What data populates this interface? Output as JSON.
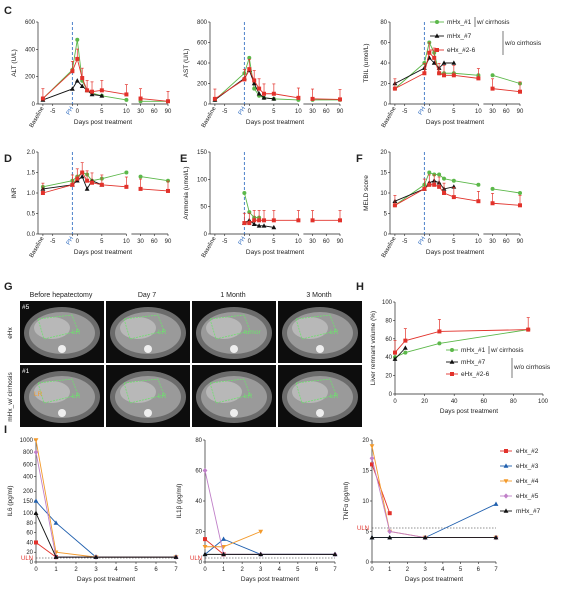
{
  "panel_letters": [
    "C",
    "D",
    "E",
    "F",
    "G",
    "H",
    "I"
  ],
  "colors": {
    "green": "#5cb84a",
    "black": "#111111",
    "red": "#e2322b",
    "orange": "#f39a2c",
    "blue": "#1f5fae",
    "purple": "#c080c8",
    "dash_blue": "#3a74c4"
  },
  "legend_top": {
    "items": [
      "mHx_#1",
      "mHx_#7",
      "eHx_#2-6"
    ],
    "groups": [
      "w/ cirrhosis",
      "w/o cirrhosis"
    ]
  },
  "legend_h": {
    "items": [
      "mHx_#1",
      "mHx_#7",
      "eHx_#2-6"
    ],
    "groups": [
      "w/ cirrhosis",
      "w/o cirrhosis"
    ]
  },
  "legend_i": [
    "eHx_#2",
    "eHx_#3",
    "eHx_#4",
    "eHx_#5",
    "mHx_#7"
  ],
  "ct": {
    "columns": [
      "Before hepatectomy",
      "Day 7",
      "1 Month",
      "3 Month"
    ],
    "rows": [
      "eHx",
      "mHx_w/ cirrhosis"
    ],
    "case_labels": [
      "#5",
      "#1"
    ],
    "annotations": [
      "LR",
      "LR",
      "tumor",
      "LR",
      "LR",
      "LR",
      "LR",
      "LR",
      "LR",
      "tumor",
      "LR",
      "LR",
      "LR"
    ]
  },
  "chart_data": [
    {
      "panel": "C",
      "type": "line",
      "ylabel": "ALT (U/L)",
      "xlabel": "Days post treatment",
      "ylim": [
        0,
        600
      ],
      "yticks": [
        "0",
        "200",
        "400",
        "600"
      ],
      "xticks": [
        "Baseline",
        "-5",
        "PH",
        "0",
        "5",
        "10",
        "30",
        "60",
        "90"
      ],
      "series": [
        {
          "name": "mHx_#1",
          "x": [
            -7,
            -1,
            0,
            1,
            2,
            3,
            5,
            10,
            30,
            90
          ],
          "y": [
            40,
            250,
            470,
            170,
            100,
            80,
            60,
            30,
            20,
            20
          ]
        },
        {
          "name": "mHx_#7",
          "x": [
            -7,
            -1,
            0,
            1,
            2,
            3,
            5
          ],
          "y": [
            30,
            110,
            170,
            130,
            100,
            70,
            60
          ]
        },
        {
          "name": "eHx_#2-6",
          "x": [
            -7,
            -1,
            0,
            1,
            2,
            3,
            5,
            10,
            30,
            90
          ],
          "y": [
            40,
            240,
            330,
            190,
            100,
            90,
            100,
            70,
            40,
            20
          ]
        }
      ]
    },
    {
      "panel": "C",
      "type": "line",
      "ylabel": "AST (U/L)",
      "xlabel": "Days post treatment",
      "ylim": [
        0,
        800
      ],
      "yticks": [
        "0",
        "200",
        "400",
        "600",
        "800"
      ],
      "xticks": [
        "Baseline",
        "-5",
        "PH",
        "0",
        "5",
        "10",
        "30",
        "60",
        "90"
      ],
      "series": [
        {
          "name": "mHx_#1",
          "x": [
            -7,
            -1,
            0,
            1,
            2,
            3,
            5,
            10,
            30,
            90
          ],
          "y": [
            40,
            300,
            450,
            150,
            80,
            60,
            50,
            40,
            40,
            40
          ]
        },
        {
          "name": "mHx_#7",
          "x": [
            -7,
            -1,
            0,
            1,
            2,
            3,
            5
          ],
          "y": [
            40,
            250,
            330,
            200,
            100,
            60,
            50
          ]
        },
        {
          "name": "eHx_#2-6",
          "x": [
            -7,
            -1,
            0,
            1,
            2,
            3,
            5,
            10,
            30,
            90
          ],
          "y": [
            50,
            240,
            340,
            230,
            150,
            100,
            100,
            60,
            50,
            45
          ]
        }
      ]
    },
    {
      "panel": "C",
      "type": "line",
      "ylabel": "TBIL (umol/L)",
      "xlabel": "Days post treatment",
      "ylim": [
        0,
        80
      ],
      "yticks": [
        "0",
        "20",
        "40",
        "60",
        "80"
      ],
      "xticks": [
        "Baseline",
        "-5",
        "PH",
        "0",
        "5",
        "10",
        "30",
        "60",
        "90"
      ],
      "series": [
        {
          "name": "mHx_#1",
          "x": [
            -7,
            -1,
            0,
            1,
            2,
            3,
            5,
            10,
            30,
            90
          ],
          "y": [
            15,
            40,
            60,
            50,
            30,
            30,
            30,
            28,
            28,
            20
          ]
        },
        {
          "name": "mHx_#7",
          "x": [
            -7,
            -1,
            0,
            1,
            2,
            3,
            5
          ],
          "y": [
            20,
            35,
            45,
            40,
            35,
            40,
            40
          ]
        },
        {
          "name": "eHx_#2-6",
          "x": [
            -7,
            -1,
            0,
            1,
            2,
            3,
            5,
            10,
            30,
            90
          ],
          "y": [
            15,
            30,
            50,
            45,
            30,
            28,
            28,
            25,
            15,
            12
          ]
        }
      ]
    },
    {
      "panel": "D",
      "type": "line",
      "ylabel": "INR",
      "xlabel": "Days post treatment",
      "ylim": [
        0.0,
        2.0
      ],
      "yticks": [
        "0.0",
        "0.5",
        "1.0",
        "1.5",
        "2.0"
      ],
      "xticks": [
        "Baseline",
        "-5",
        "PH",
        "0",
        "5",
        "10",
        "30",
        "60",
        "90"
      ],
      "series": [
        {
          "name": "mHx_#1",
          "x": [
            -7,
            -1,
            0,
            1,
            2,
            3,
            5,
            10,
            30,
            90
          ],
          "y": [
            1.15,
            1.3,
            1.4,
            1.5,
            1.45,
            1.3,
            1.35,
            1.5,
            1.4,
            1.3
          ]
        },
        {
          "name": "mHx_#7",
          "x": [
            -7,
            -1,
            0,
            1,
            2,
            3,
            5
          ],
          "y": [
            1.1,
            1.2,
            1.3,
            1.4,
            1.1,
            1.3,
            1.2
          ]
        },
        {
          "name": "eHx_#2-6",
          "x": [
            -7,
            -1,
            0,
            1,
            2,
            3,
            5,
            10,
            30,
            90
          ],
          "y": [
            1.0,
            1.2,
            1.35,
            1.5,
            1.3,
            1.25,
            1.2,
            1.15,
            1.1,
            1.05
          ]
        }
      ]
    },
    {
      "panel": "E",
      "type": "line",
      "ylabel": "Ammonia (umol/L)",
      "xlabel": "Days post treatment",
      "ylim": [
        0,
        150
      ],
      "yticks": [
        "0",
        "50",
        "100",
        "150"
      ],
      "xticks": [
        "Baseline",
        "-5",
        "PH",
        "0",
        "5",
        "10",
        "30",
        "60",
        "90"
      ],
      "series": [
        {
          "name": "mHx_#1",
          "x": [
            -1,
            0,
            1,
            2
          ],
          "y": [
            75,
            40,
            30,
            30
          ]
        },
        {
          "name": "mHx_#7",
          "x": [
            -1,
            0,
            1,
            2,
            3,
            5
          ],
          "y": [
            20,
            25,
            18,
            15,
            15,
            12
          ]
        },
        {
          "name": "eHx_#2-6",
          "x": [
            -1,
            0,
            1,
            2,
            3,
            5,
            10,
            30,
            90
          ],
          "y": [
            20,
            20,
            25,
            25,
            25,
            25,
            25,
            25,
            25
          ]
        }
      ]
    },
    {
      "panel": "F",
      "type": "line",
      "ylabel": "MELD score",
      "xlabel": "Days post treatment",
      "ylim": [
        0,
        20
      ],
      "yticks": [
        "0",
        "5",
        "10",
        "15",
        "20"
      ],
      "xticks": [
        "Baseline",
        "-5",
        "PH",
        "0",
        "5",
        "10",
        "30",
        "60",
        "90"
      ],
      "series": [
        {
          "name": "mHx_#1",
          "x": [
            -7,
            -1,
            0,
            1,
            2,
            3,
            5,
            10,
            30,
            90
          ],
          "y": [
            7,
            12,
            15,
            14.5,
            14.5,
            13.5,
            13,
            12,
            11,
            10
          ]
        },
        {
          "name": "mHx_#7",
          "x": [
            -7,
            -1,
            0,
            1,
            2,
            3,
            5
          ],
          "y": [
            8,
            11,
            12.5,
            13,
            12.5,
            11,
            11.5
          ]
        },
        {
          "name": "eHx_#2-6",
          "x": [
            -7,
            -1,
            0,
            1,
            2,
            3,
            5,
            10,
            30,
            90
          ],
          "y": [
            7,
            11,
            12,
            12,
            11.5,
            10,
            9,
            8,
            7.5,
            7
          ]
        }
      ]
    },
    {
      "panel": "H",
      "type": "line",
      "ylabel": "Liver remnant volume (%)",
      "xlabel": "Days post treatment",
      "ylim": [
        0,
        100
      ],
      "yticks": [
        "0",
        "20",
        "40",
        "60",
        "80",
        "100"
      ],
      "xticks": [
        "0",
        "20",
        "40",
        "60",
        "80",
        "100"
      ],
      "series": [
        {
          "name": "mHx_#1",
          "x": [
            0,
            7,
            30,
            90
          ],
          "y": [
            40,
            45,
            55,
            70
          ]
        },
        {
          "name": "mHx_#7",
          "x": [
            0,
            7
          ],
          "y": [
            38,
            50
          ]
        },
        {
          "name": "eHx_#2-6",
          "x": [
            0,
            7,
            30,
            90
          ],
          "y": [
            45,
            58,
            68,
            70
          ]
        }
      ]
    },
    {
      "panel": "I",
      "type": "line",
      "ylabel": "IL6 (pg/ml)",
      "xlabel": "Days post treatment",
      "yticks": [
        "0",
        "20",
        "40",
        "60",
        "80",
        "100",
        "150",
        "200",
        "400",
        "600",
        "800",
        "1000"
      ],
      "xticks": [
        "0",
        "1",
        "2",
        "3",
        "4",
        "5",
        "6",
        "7"
      ],
      "reference": "ULN",
      "series": [
        {
          "name": "eHx_#2",
          "x": [
            0,
            1
          ],
          "y": [
            40,
            10
          ]
        },
        {
          "name": "eHx_#3",
          "x": [
            0,
            1,
            3,
            7
          ],
          "y": [
            150,
            80,
            10,
            10
          ]
        },
        {
          "name": "eHx_#4",
          "x": [
            0,
            1,
            3,
            7
          ],
          "y": [
            1000,
            20,
            10,
            10
          ]
        },
        {
          "name": "eHx_#5",
          "x": [
            0,
            1,
            3,
            7
          ],
          "y": [
            800,
            10,
            10,
            10
          ]
        },
        {
          "name": "mHx_#7",
          "x": [
            0,
            1,
            3,
            7
          ],
          "y": [
            100,
            10,
            10,
            10
          ]
        }
      ]
    },
    {
      "panel": "I",
      "type": "line",
      "ylabel": "IL1β (pg/ml)",
      "xlabel": "Days post treatment",
      "ylim": [
        0,
        80
      ],
      "yticks": [
        "0",
        "20",
        "40",
        "60",
        "80"
      ],
      "xticks": [
        "0",
        "1",
        "2",
        "3",
        "4",
        "5",
        "6",
        "7"
      ],
      "reference": "ULN",
      "series": [
        {
          "name": "eHx_#2",
          "x": [
            0,
            1
          ],
          "y": [
            15,
            5
          ]
        },
        {
          "name": "eHx_#3",
          "x": [
            0,
            1,
            3,
            7
          ],
          "y": [
            5,
            15,
            5,
            5
          ]
        },
        {
          "name": "eHx_#4",
          "x": [
            0,
            1,
            3
          ],
          "y": [
            10,
            10,
            20
          ]
        },
        {
          "name": "eHx_#5",
          "x": [
            0,
            1,
            3,
            7
          ],
          "y": [
            60,
            5,
            5,
            5
          ]
        },
        {
          "name": "mHx_#7",
          "x": [
            0,
            1,
            3,
            7
          ],
          "y": [
            5,
            5,
            5,
            5
          ]
        }
      ]
    },
    {
      "panel": "I",
      "type": "line",
      "ylabel": "TNFα (pg/ml)",
      "xlabel": "Days post treatment",
      "ylim": [
        0,
        20
      ],
      "yticks": [
        "0",
        "5",
        "10",
        "15",
        "20"
      ],
      "xticks": [
        "0",
        "1",
        "2",
        "3",
        "4",
        "5",
        "6",
        "7"
      ],
      "reference": "ULN",
      "series": [
        {
          "name": "eHx_#2",
          "x": [
            0,
            1
          ],
          "y": [
            16,
            8
          ]
        },
        {
          "name": "eHx_#3",
          "x": [
            0,
            1,
            3,
            7
          ],
          "y": [
            4,
            4,
            4,
            9.5
          ]
        },
        {
          "name": "eHx_#4",
          "x": [
            0,
            1,
            3,
            7
          ],
          "y": [
            19,
            5,
            4,
            4
          ]
        },
        {
          "name": "eHx_#5",
          "x": [
            0,
            1,
            3,
            7
          ],
          "y": [
            17,
            5,
            4,
            4
          ]
        },
        {
          "name": "mHx_#7",
          "x": [
            0,
            1,
            3,
            7
          ],
          "y": [
            4,
            4,
            4,
            4
          ]
        }
      ]
    }
  ]
}
